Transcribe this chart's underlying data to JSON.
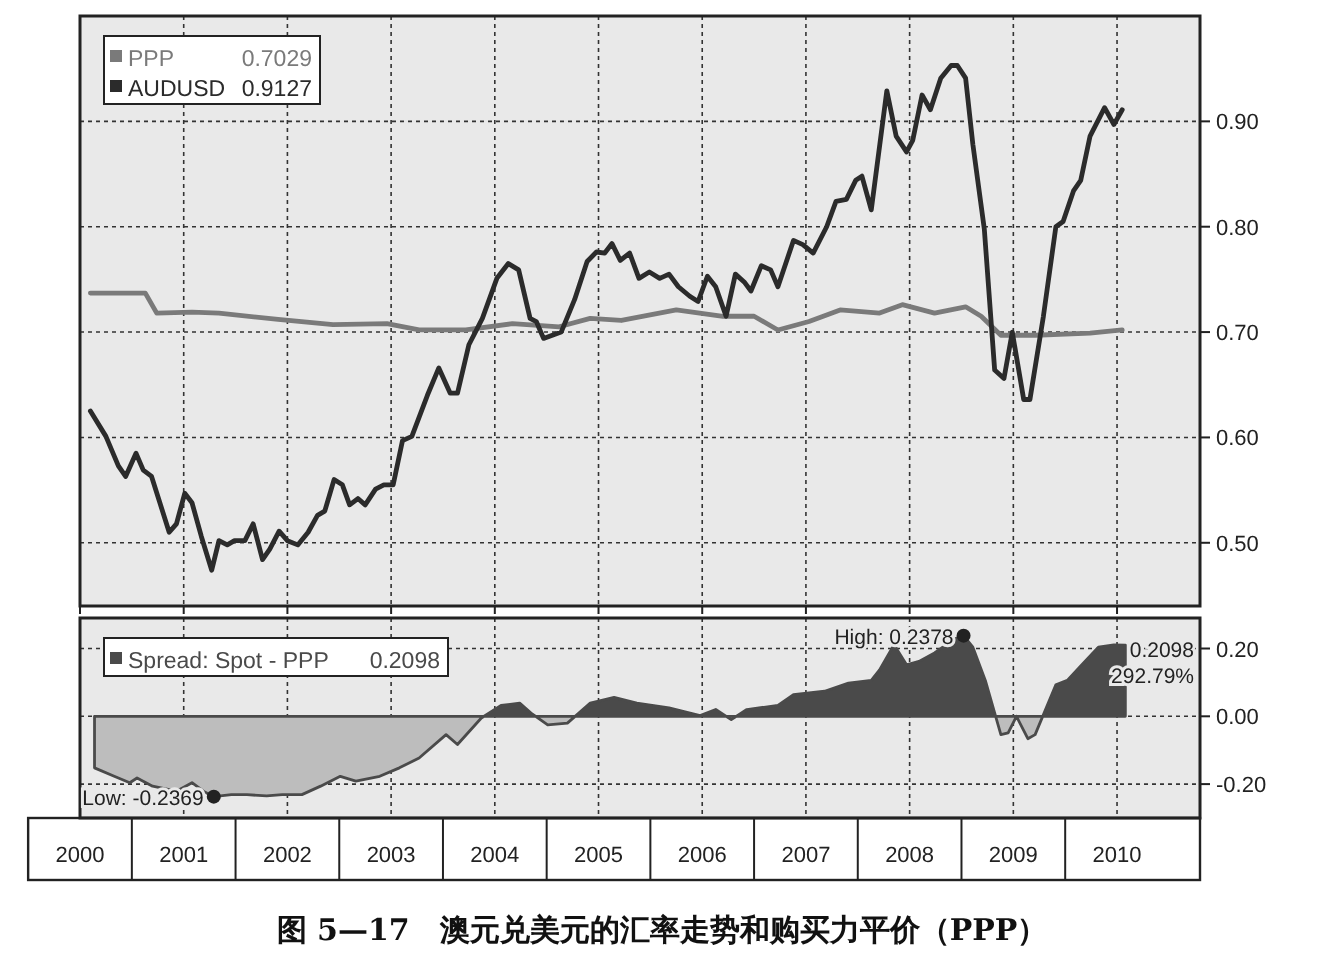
{
  "chart_data": [
    {
      "type": "line",
      "tick_labels": "y",
      "grid": true,
      "legend": "top left",
      "xlim": [
        2000,
        2010.8
      ],
      "ylim": [
        0.44,
        1.0
      ],
      "xticks": [
        2000,
        2001,
        2002,
        2003,
        2004,
        2005,
        2006,
        2007,
        2008,
        2009,
        2010
      ],
      "yticks": [
        {
          "value": 0.5,
          "label": "0.50"
        },
        {
          "value": 0.6,
          "label": "0.60"
        },
        {
          "value": 0.7,
          "label": "0.70"
        },
        {
          "value": 0.8,
          "label": "0.80"
        },
        {
          "value": 0.9,
          "label": "0.90"
        }
      ],
      "annotations": [
        "0.7029",
        "0.9127"
      ],
      "series": [
        {
          "name": "PPP",
          "color": "#7a7a7a",
          "x": [
            2000.1,
            2000.63,
            2000.74,
            2001.08,
            2001.34,
            2001.91,
            2002.44,
            2002.96,
            2003.27,
            2003.72,
            2004.17,
            2004.62,
            2004.92,
            2005.22,
            2005.75,
            2006.2,
            2006.5,
            2006.73,
            2007.03,
            2007.33,
            2007.71,
            2007.93,
            2008.24,
            2008.54,
            2008.69,
            2008.88,
            2009.21,
            2009.74,
            2010.05
          ],
          "values": [
            0.737,
            0.737,
            0.718,
            0.719,
            0.718,
            0.712,
            0.707,
            0.708,
            0.702,
            0.702,
            0.708,
            0.705,
            0.713,
            0.711,
            0.721,
            0.715,
            0.715,
            0.702,
            0.71,
            0.721,
            0.718,
            0.726,
            0.718,
            0.724,
            0.715,
            0.697,
            0.697,
            0.699,
            0.702
          ]
        },
        {
          "name": "AUDUSD",
          "color": "#2b2b2b",
          "x": [
            2000.1,
            2000.25,
            2000.37,
            2000.44,
            2000.54,
            2000.61,
            2000.69,
            2000.86,
            2000.93,
            2001.01,
            2001.08,
            2001.17,
            2001.27,
            2001.34,
            2001.42,
            2001.49,
            2001.59,
            2001.67,
            2001.76,
            2001.83,
            2001.92,
            2002.0,
            2002.1,
            2002.2,
            2002.29,
            2002.36,
            2002.45,
            2002.53,
            2002.6,
            2002.68,
            2002.75,
            2002.85,
            2002.93,
            2003.02,
            2003.11,
            2003.2,
            2003.35,
            2003.46,
            2003.57,
            2003.64,
            2003.75,
            2003.88,
            2004.02,
            2004.13,
            2004.23,
            2004.34,
            2004.4,
            2004.47,
            2004.64,
            2004.77,
            2004.89,
            2004.98,
            2005.06,
            2005.13,
            2005.21,
            2005.3,
            2005.39,
            2005.49,
            2005.59,
            2005.68,
            2005.77,
            2005.88,
            2005.96,
            2006.05,
            2006.13,
            2006.23,
            2006.32,
            2006.41,
            2006.47,
            2006.57,
            2006.66,
            2006.73,
            2006.88,
            2006.97,
            2007.07,
            2007.2,
            2007.29,
            2007.39,
            2007.48,
            2007.54,
            2007.63,
            2007.78,
            2007.87,
            2007.97,
            2008.03,
            2008.12,
            2008.2,
            2008.3,
            2008.4,
            2008.46,
            2008.54,
            2008.61,
            2008.72,
            2008.82,
            2008.91,
            2008.99,
            2009.1,
            2009.16,
            2009.29,
            2009.41,
            2009.48,
            2009.58,
            2009.65,
            2009.74,
            2009.88,
            2009.97,
            2010.05
          ],
          "values": [
            0.625,
            0.601,
            0.573,
            0.563,
            0.585,
            0.569,
            0.563,
            0.51,
            0.518,
            0.547,
            0.538,
            0.506,
            0.474,
            0.502,
            0.498,
            0.502,
            0.502,
            0.518,
            0.484,
            0.494,
            0.511,
            0.502,
            0.498,
            0.51,
            0.526,
            0.53,
            0.56,
            0.555,
            0.536,
            0.542,
            0.536,
            0.551,
            0.555,
            0.555,
            0.597,
            0.601,
            0.64,
            0.666,
            0.642,
            0.642,
            0.688,
            0.713,
            0.751,
            0.765,
            0.759,
            0.713,
            0.71,
            0.694,
            0.7,
            0.731,
            0.767,
            0.776,
            0.775,
            0.784,
            0.768,
            0.775,
            0.751,
            0.757,
            0.751,
            0.755,
            0.743,
            0.734,
            0.729,
            0.753,
            0.743,
            0.715,
            0.755,
            0.747,
            0.739,
            0.763,
            0.759,
            0.743,
            0.787,
            0.783,
            0.775,
            0.8,
            0.824,
            0.826,
            0.844,
            0.848,
            0.816,
            0.929,
            0.886,
            0.871,
            0.882,
            0.925,
            0.911,
            0.941,
            0.953,
            0.953,
            0.941,
            0.878,
            0.798,
            0.664,
            0.656,
            0.7,
            0.636,
            0.636,
            0.715,
            0.8,
            0.805,
            0.834,
            0.844,
            0.886,
            0.913,
            0.897,
            0.911
          ]
        }
      ]
    },
    {
      "type": "area",
      "title": "图 5—17　澳元兑美元的汇率走势和购买力平价（PPP）",
      "grid": true,
      "legend": "top left",
      "xlim": [
        2000,
        2010.8
      ],
      "ylim": [
        -0.3,
        0.29
      ],
      "xticks": [
        2000,
        2001,
        2002,
        2003,
        2004,
        2005,
        2006,
        2007,
        2008,
        2009,
        2010
      ],
      "yticks": [
        {
          "value": -0.2,
          "label": "-0.20"
        },
        {
          "value": 0,
          "label": "0.00"
        },
        {
          "value": 0.2,
          "label": "0.20"
        }
      ],
      "annotations": [
        "0.2098",
        {
          "text": "Low: -0.2369",
          "x": 2001.29,
          "y": -0.237
        },
        {
          "text": "High: 0.2378",
          "x": 2008.52,
          "y": 0.238
        },
        "0.2098",
        "292.79%"
      ],
      "series": [
        {
          "name": "Spread: Spot - PPP",
          "color": "#4a4a4a",
          "x": [
            2000.14,
            2000.33,
            2000.48,
            2000.55,
            2000.7,
            2000.93,
            2001.08,
            2001.19,
            2001.29,
            2001.46,
            2001.61,
            2001.8,
            2001.95,
            2002.14,
            2002.32,
            2002.51,
            2002.66,
            2002.89,
            2003.08,
            2003.27,
            2003.53,
            2003.64,
            2003.87,
            2004.06,
            2004.24,
            2004.36,
            2004.51,
            2004.7,
            2004.92,
            2005.15,
            2005.37,
            2005.68,
            2005.98,
            2006.13,
            2006.28,
            2006.43,
            2006.73,
            2006.88,
            2007.18,
            2007.41,
            2007.63,
            2007.71,
            2007.85,
            2007.97,
            2008.09,
            2008.24,
            2008.43,
            2008.52,
            2008.61,
            2008.73,
            2008.88,
            2008.95,
            2009.03,
            2009.14,
            2009.21,
            2009.41,
            2009.52,
            2009.67,
            2009.82,
            2009.97,
            2010.08
          ],
          "values": [
            -0.152,
            -0.177,
            -0.196,
            -0.182,
            -0.206,
            -0.221,
            -0.196,
            -0.221,
            -0.237,
            -0.231,
            -0.231,
            -0.235,
            -0.231,
            -0.231,
            -0.206,
            -0.177,
            -0.191,
            -0.177,
            -0.152,
            -0.123,
            -0.054,
            -0.083,
            -0.005,
            0.032,
            0.039,
            0.007,
            -0.025,
            -0.02,
            0.039,
            0.056,
            0.039,
            0.025,
            0.002,
            0.02,
            -0.01,
            0.02,
            0.032,
            0.064,
            0.074,
            0.098,
            0.106,
            0.137,
            0.211,
            0.152,
            0.162,
            0.187,
            0.228,
            0.238,
            0.204,
            0.106,
            -0.054,
            -0.049,
            0.0,
            -0.066,
            -0.054,
            0.093,
            0.106,
            0.155,
            0.204,
            0.211,
            0.21
          ]
        }
      ]
    }
  ]
}
